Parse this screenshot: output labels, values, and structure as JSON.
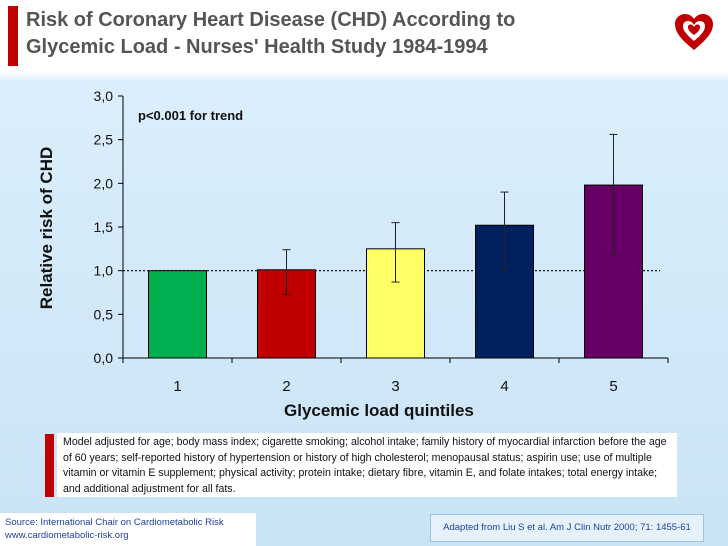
{
  "slide": {
    "title_line1": "Risk of Coronary Heart Disease (CHD) According to",
    "title_line2": "Glycemic Load - Nurses' Health Study 1984-1994",
    "logo_icon": "heart-logo-icon",
    "accent_color": "#c00000"
  },
  "chart_data": {
    "type": "bar",
    "categories": [
      "1",
      "2",
      "3",
      "4",
      "5"
    ],
    "values": [
      1.0,
      1.01,
      1.25,
      1.52,
      1.98
    ],
    "error_low": [
      null,
      0.73,
      0.87,
      0.99,
      1.19
    ],
    "error_high": [
      null,
      1.24,
      1.55,
      1.9,
      2.56
    ],
    "colors": [
      "#00b050",
      "#c00000",
      "#ffff66",
      "#002060",
      "#660066"
    ],
    "title": "",
    "xlabel": "Glycemic load quintiles",
    "ylabel": "Relative risk of CHD",
    "ylim": [
      0,
      3
    ],
    "yticks": [
      0,
      0.5,
      1,
      1.5,
      2,
      2.5,
      3
    ],
    "ytick_labels": [
      "0,0",
      "0,5",
      "1,0",
      "1,5",
      "2,0",
      "2,5",
      "3,0"
    ],
    "reference_line": 1.0,
    "annotation": "p<0.001 for trend",
    "grid": false,
    "legend": "none"
  },
  "notes": {
    "model_adjustment": "Model adjusted for age; body mass index; cigarette smoking; alcohol intake; family history of myocardial infarction before the age of 60 years; self-reported history of hypertension or history of high cholesterol; menopausal status; aspirin use; use of multiple vitamin or vitamin E supplement; physical activity; protein intake; dietary fibre, vitamin E, and folate intakes; total energy intake; and additional adjustment for all fats."
  },
  "footer": {
    "source_line1": "Source: International Chair on Cardiometabolic Risk",
    "source_line2": "www.cardiometabolic-risk.org",
    "adapted_from": "Adapted from Liu S et al. Am J Clin Nutr 2000; 71: 1455-61"
  }
}
